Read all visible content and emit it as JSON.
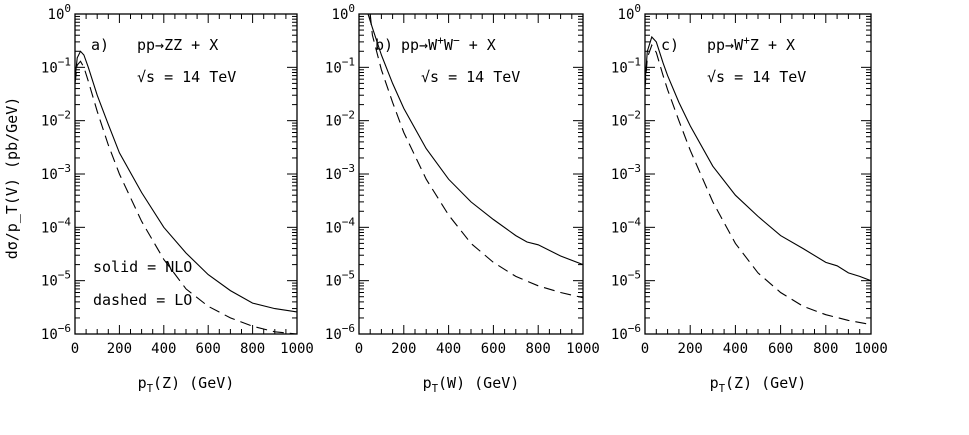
{
  "figure": {
    "ylabel": "dσ/p_T(V) (pb/GeV)",
    "sqrt_s": "√s = 14 TeV",
    "legend": {
      "solid": "solid = NLO",
      "dashed": "dashed = LO"
    }
  },
  "chart_data": [
    {
      "type": "line",
      "panel": "a)",
      "process": "pp→ZZ + X",
      "annotation": "√s = 14 TeV",
      "xlabel": "p_T(Z) (GeV)",
      "ylabel": "dσ/p_T(V) (pb/GeV)",
      "xlim": [
        0,
        1000
      ],
      "ylim": [
        1e-06,
        1
      ],
      "yscale": "log",
      "xticks": [
        0,
        200,
        400,
        600,
        800,
        1000
      ],
      "ytick_exponents": [
        0,
        -1,
        -2,
        -3,
        -4,
        -5,
        -6
      ],
      "legend_text": [
        "solid = NLO",
        "dashed = LO"
      ],
      "series": [
        {
          "name": "NLO",
          "style": "solid",
          "x": [
            0,
            10,
            25,
            40,
            60,
            100,
            150,
            200,
            300,
            400,
            500,
            600,
            700,
            800,
            900,
            1000
          ],
          "y": [
            0.06,
            0.15,
            0.2,
            0.17,
            0.1,
            0.03,
            0.0085,
            0.0025,
            0.00045,
            0.0001,
            3.3e-05,
            1.3e-05,
            6.5e-06,
            3.8e-06,
            3e-06,
            2.6e-06
          ]
        },
        {
          "name": "LO",
          "style": "dashed",
          "x": [
            0,
            10,
            25,
            40,
            60,
            100,
            150,
            200,
            300,
            400,
            500,
            600,
            700,
            800,
            900,
            1000
          ],
          "y": [
            0.05,
            0.11,
            0.13,
            0.1,
            0.055,
            0.015,
            0.0035,
            0.001,
            0.00013,
            2.5e-05,
            7e-06,
            3.3e-06,
            2e-06,
            1.4e-06,
            1.1e-06,
            1e-06
          ]
        }
      ]
    },
    {
      "type": "line",
      "panel": "b)",
      "process": "pp→W⁺W⁻ + X",
      "annotation": "√s = 14 TeV",
      "xlabel": "p_T(W) (GeV)",
      "ylabel": "",
      "xlim": [
        0,
        1000
      ],
      "ylim": [
        1e-06,
        1
      ],
      "yscale": "log",
      "xticks": [
        0,
        200,
        400,
        600,
        800,
        1000
      ],
      "ytick_exponents": [
        0,
        -1,
        -2,
        -3,
        -4,
        -5,
        -6
      ],
      "series": [
        {
          "name": "NLO",
          "style": "solid",
          "x": [
            40,
            60,
            100,
            150,
            200,
            300,
            400,
            500,
            600,
            700,
            750,
            800,
            900,
            1000
          ],
          "y": [
            1,
            0.55,
            0.17,
            0.05,
            0.017,
            0.003,
            0.0008,
            0.0003,
            0.00014,
            7e-05,
            5.3e-05,
            4.7e-05,
            2.9e-05,
            2e-05
          ]
        },
        {
          "name": "LO",
          "style": "dashed",
          "x": [
            50,
            60,
            100,
            150,
            200,
            300,
            400,
            500,
            600,
            700,
            800,
            900,
            1000
          ],
          "y": [
            1,
            0.4,
            0.09,
            0.022,
            0.006,
            0.0008,
            0.00017,
            5e-05,
            2.2e-05,
            1.2e-05,
            8e-06,
            6e-06,
            4.8e-06
          ]
        }
      ]
    },
    {
      "type": "line",
      "panel": "c)",
      "process": "pp→W⁺Z + X",
      "annotation": "√s = 14 TeV",
      "xlabel": "p_T(Z) (GeV)",
      "ylabel": "",
      "xlim": [
        0,
        1000
      ],
      "ylim": [
        1e-06,
        1
      ],
      "yscale": "log",
      "xticks": [
        0,
        200,
        400,
        600,
        800,
        1000
      ],
      "ytick_exponents": [
        0,
        -1,
        -2,
        -3,
        -4,
        -5,
        -6
      ],
      "series": [
        {
          "name": "NLO",
          "style": "solid",
          "x": [
            0,
            10,
            30,
            50,
            80,
            100,
            150,
            200,
            300,
            400,
            500,
            600,
            700,
            800,
            850,
            900,
            950,
            1000
          ],
          "y": [
            0.05,
            0.2,
            0.37,
            0.3,
            0.12,
            0.07,
            0.022,
            0.008,
            0.0014,
            0.0004,
            0.00016,
            7e-05,
            4e-05,
            2.2e-05,
            1.9e-05,
            1.4e-05,
            1.2e-05,
            1e-05
          ]
        },
        {
          "name": "LO",
          "style": "dashed",
          "x": [
            0,
            10,
            30,
            50,
            80,
            100,
            150,
            200,
            300,
            400,
            500,
            600,
            700,
            800,
            900,
            1000
          ],
          "y": [
            0.04,
            0.15,
            0.26,
            0.19,
            0.07,
            0.038,
            0.01,
            0.0028,
            0.0003,
            5e-05,
            1.4e-05,
            6e-06,
            3.3e-06,
            2.3e-06,
            1.8e-06,
            1.5e-06
          ]
        }
      ]
    }
  ]
}
